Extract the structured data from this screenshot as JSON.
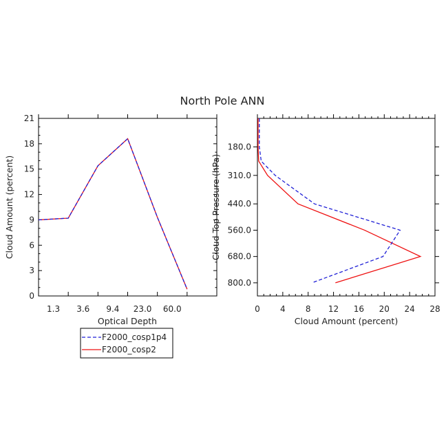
{
  "title": "North Pole ANN",
  "colors": {
    "cosp1p4": "#1f1fd6",
    "cosp2": "#ee1111"
  },
  "chart_data": [
    {
      "type": "line",
      "xlabel": "Optical Depth",
      "ylabel": "Cloud Amount (percent)",
      "x_tick_labels": [
        "1.3",
        "3.6",
        "9.4",
        "23.0",
        "60.0"
      ],
      "x": [
        1,
        2,
        3,
        4,
        5,
        6,
        7
      ],
      "ylim": [
        0,
        21
      ],
      "yticks": [
        "0",
        "3",
        "6",
        "9",
        "12",
        "15",
        "18",
        "21"
      ],
      "series": [
        {
          "name": "F2000_cosp1p4",
          "style": "dashed",
          "color": "#1f1fd6",
          "values": [
            9.0,
            9.2,
            15.4,
            18.6,
            9.3,
            0.8,
            null
          ]
        },
        {
          "name": "F2000_cosp2",
          "style": "solid",
          "color": "#ee1111",
          "values": [
            9.0,
            9.2,
            15.4,
            18.6,
            9.3,
            0.8,
            null
          ]
        }
      ]
    },
    {
      "type": "line",
      "xlabel": "Cloud Amount (percent)",
      "ylabel": "Cloud Top Pressure (hPa)",
      "xlim": [
        0,
        28
      ],
      "xticks": [
        "0",
        "4",
        "8",
        "12",
        "16",
        "20",
        "24",
        "28"
      ],
      "y_tick_labels": [
        "180.0",
        "310.0",
        "440.0",
        "560.0",
        "680.0",
        "800.0"
      ],
      "y_axis": "pressure, increasing downward",
      "pressure": [
        50,
        180,
        245,
        310,
        440,
        560,
        680,
        800,
        860
      ],
      "series": [
        {
          "name": "F2000_cosp1p4",
          "style": "dashed",
          "color": "#1f1fd6",
          "values": [
            0.3,
            0.3,
            0.6,
            2.8,
            9.0,
            22.5,
            19.8,
            8.6,
            null
          ]
        },
        {
          "name": "F2000_cosp2",
          "style": "solid",
          "color": "#ee1111",
          "values": [
            0.1,
            0.1,
            0.2,
            1.6,
            6.4,
            16.9,
            25.7,
            12.3,
            null
          ]
        }
      ]
    }
  ],
  "legend": {
    "items": [
      {
        "label": "F2000_cosp1p4",
        "style": "dashed",
        "color": "#1f1fd6"
      },
      {
        "label": "F2000_cosp2",
        "style": "solid",
        "color": "#ee1111"
      }
    ]
  }
}
